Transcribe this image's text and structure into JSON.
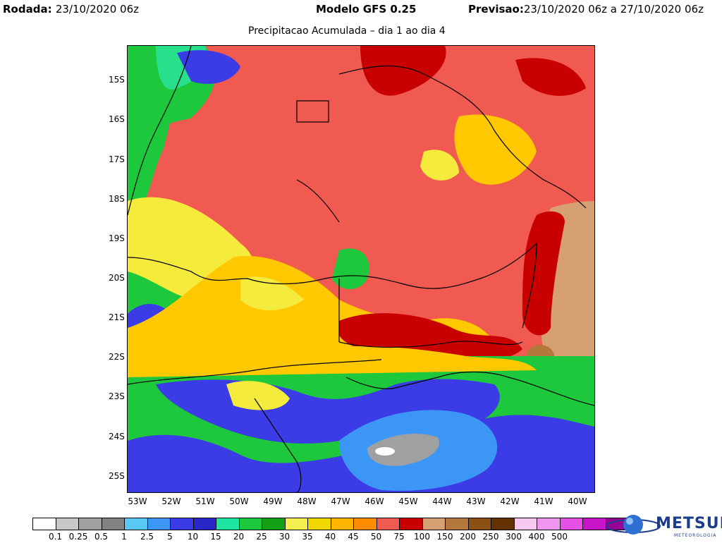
{
  "header": {
    "rodada_label": "Rodada:",
    "rodada_value": "23/10/2020 06z",
    "model": "Modelo GFS 0.25",
    "previsao_label": "Previsao:",
    "previsao_value": "23/10/2020 06z a 27/10/2020 06z"
  },
  "subtitle": "Precipitacao Acumulada – dia 1 ao dia 4",
  "map": {
    "lat_labels": [
      "15S",
      "16S",
      "17S",
      "18S",
      "19S",
      "20S",
      "21S",
      "22S",
      "23S",
      "24S",
      "25S"
    ],
    "lon_labels": [
      "53W",
      "52W",
      "51W",
      "50W",
      "49W",
      "48W",
      "47W",
      "46W",
      "45W",
      "44W",
      "43W",
      "42W",
      "41W",
      "40W"
    ],
    "dominant_colors": {
      "heavy": "#f05a50",
      "very_heavy": "#c80000",
      "medium": "#ffc800",
      "moderate": "#f5eb3c",
      "light": "#1ec83c",
      "blue": "#3c3ce6",
      "teal": "#28e08c",
      "tan": "#d7a073"
    }
  },
  "legend": {
    "colors": [
      "#ffffff",
      "#c8c8c8",
      "#a0a0a0",
      "#828282",
      "#5ac8f5",
      "#3c96f5",
      "#3c3ce6",
      "#2828c8",
      "#1ee6a0",
      "#1ec83c",
      "#14a014",
      "#f5f050",
      "#f0d700",
      "#ffb400",
      "#ff8c00",
      "#f05a50",
      "#c80000",
      "#d7a073",
      "#b4783c",
      "#8c5014",
      "#643200",
      "#f5c8f0",
      "#f096f0",
      "#e650e6",
      "#c814c8",
      "#960096"
    ],
    "ticks": [
      "0.1",
      "0.25",
      "0.5",
      "1",
      "2.5",
      "5",
      "10",
      "15",
      "20",
      "25",
      "30",
      "35",
      "40",
      "45",
      "50",
      "75",
      "100",
      "150",
      "200",
      "250",
      "300",
      "400",
      "500"
    ]
  },
  "logo": {
    "name": "METSUL",
    "subtitle": "METEOROLOGIA"
  }
}
